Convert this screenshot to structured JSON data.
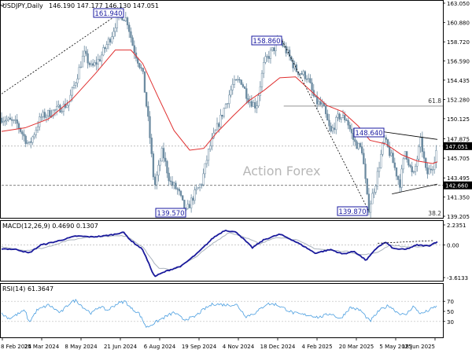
{
  "header": {
    "symbol": "USDJPY,Daily",
    "ohlc": "146.190 147.177 146.130 147.051"
  },
  "watermark": "Action Forex",
  "colors": {
    "candle": "#6b8aa0",
    "ma": "#e03030",
    "macd": "#1a1a9c",
    "signal": "#a9b2bc",
    "rsi": "#4a9ee0",
    "trend": "#000000",
    "priceTagBg": "#000000",
    "levelTagBg": "#000000"
  },
  "chart_data": [
    {
      "type": "line",
      "title": "USDJPY,Daily",
      "subtitle": "146.190 147.177 146.130 147.051",
      "x": [
        "8 Feb 2024",
        "25 Mar 2024",
        "8 May 2024",
        "21 Jun 2024",
        "6 Aug 2024",
        "19 Sep 2024",
        "4 Nov 2024",
        "18 Dec 2024",
        "4 Feb 2025",
        "20 Mar 2025",
        "5 May 2025",
        "18 Jun 2025"
      ],
      "ylim": [
        139.205,
        163.05
      ],
      "yticks": [
        "163.050",
        "160.880",
        "158.720",
        "156.590",
        "154.435",
        "152.280",
        "150.125",
        "147.875",
        "145.705",
        "143.495",
        "141.350",
        "139.205"
      ],
      "price_path": [
        [
          0,
          150.2
        ],
        [
          20,
          149.5
        ],
        [
          35,
          147.1
        ],
        [
          50,
          150.3
        ],
        [
          70,
          151.1
        ],
        [
          85,
          151.8
        ],
        [
          95,
          154.5
        ],
        [
          105,
          157.4
        ],
        [
          115,
          155.8
        ],
        [
          125,
          156.8
        ],
        [
          140,
          159.4
        ],
        [
          150,
          161.9
        ],
        [
          160,
          161.2
        ],
        [
          168,
          158.1
        ],
        [
          180,
          155.2
        ],
        [
          188,
          149.2
        ],
        [
          195,
          142.4
        ],
        [
          205,
          146.5
        ],
        [
          215,
          143.0
        ],
        [
          225,
          142.1
        ],
        [
          235,
          139.6
        ],
        [
          245,
          141.5
        ],
        [
          255,
          142.9
        ],
        [
          265,
          146.8
        ],
        [
          280,
          150.3
        ],
        [
          295,
          153.9
        ],
        [
          305,
          154.5
        ],
        [
          315,
          152.3
        ],
        [
          325,
          151.5
        ],
        [
          335,
          156.4
        ],
        [
          345,
          157.7
        ],
        [
          355,
          158.9
        ],
        [
          365,
          157.4
        ],
        [
          375,
          155.6
        ],
        [
          390,
          154.8
        ],
        [
          400,
          152.1
        ],
        [
          410,
          151.5
        ],
        [
          420,
          148.5
        ],
        [
          430,
          150.4
        ],
        [
          440,
          150.1
        ],
        [
          450,
          147.5
        ],
        [
          460,
          146.6
        ],
        [
          468,
          139.9
        ],
        [
          478,
          143.2
        ],
        [
          488,
          147.9
        ],
        [
          498,
          145.6
        ],
        [
          508,
          142.8
        ],
        [
          515,
          146.6
        ],
        [
          525,
          143.5
        ],
        [
          535,
          147.7
        ],
        [
          542,
          143.8
        ],
        [
          550,
          144.9
        ],
        [
          556,
          147.1
        ]
      ],
      "ma_path": [
        [
          0,
          148.7
        ],
        [
          30,
          149.1
        ],
        [
          60,
          150.1
        ],
        [
          90,
          152.3
        ],
        [
          120,
          155.2
        ],
        [
          145,
          157.8
        ],
        [
          165,
          157.8
        ],
        [
          180,
          156.3
        ],
        [
          200,
          152.5
        ],
        [
          220,
          148.8
        ],
        [
          240,
          146.6
        ],
        [
          258,
          146.8
        ],
        [
          275,
          148.6
        ],
        [
          295,
          150.4
        ],
        [
          315,
          152.1
        ],
        [
          335,
          153.3
        ],
        [
          355,
          154.7
        ],
        [
          375,
          154.8
        ],
        [
          395,
          153.2
        ],
        [
          415,
          151.6
        ],
        [
          435,
          150.9
        ],
        [
          455,
          149.3
        ],
        [
          470,
          147.7
        ],
        [
          490,
          147.3
        ],
        [
          510,
          146.1
        ],
        [
          530,
          145.4
        ],
        [
          550,
          145.1
        ],
        [
          556,
          145.3
        ]
      ],
      "annotations": [
        {
          "label": "161.940",
          "kind": "high"
        },
        {
          "label": "158.860",
          "kind": "high"
        },
        {
          "label": "148.640",
          "kind": "high"
        },
        {
          "label": "139.570",
          "kind": "low"
        },
        {
          "label": "139.870",
          "kind": "low"
        },
        {
          "label": "61.8",
          "kind": "fib"
        },
        {
          "label": "38.2",
          "kind": "fib"
        }
      ],
      "levels": [
        {
          "name": "current_price",
          "value": 147.051,
          "label": "147.051"
        },
        {
          "name": "support",
          "value": 142.66,
          "label": "142.660"
        },
        {
          "name": "fib_61_8",
          "value": 151.53
        }
      ],
      "trendlines": [
        {
          "name": "long-uptrend",
          "points": [
            [
              0,
              152.9
            ],
            [
              150,
              161.9
            ]
          ],
          "style": "dashed"
        },
        {
          "name": "downtrend",
          "points": [
            [
              358,
              158.86
            ],
            [
              468,
              139.87
            ]
          ],
          "style": "dashed"
        },
        {
          "name": "triangle-upper",
          "points": [
            [
              488,
              148.64
            ],
            [
              556,
              147.8
            ]
          ],
          "style": "solid"
        },
        {
          "name": "triangle-lower",
          "points": [
            [
              498,
              141.7
            ],
            [
              556,
              142.8
            ]
          ],
          "style": "solid"
        }
      ]
    },
    {
      "type": "line",
      "title": "MACD(12,26,9) 0.4690 0.1307",
      "ylim": [
        -3.6133,
        2.2351
      ],
      "yticks": [
        "2.2351",
        "0.00",
        "-3.6133"
      ],
      "macd": [
        [
          0,
          -0.4
        ],
        [
          20,
          -0.5
        ],
        [
          35,
          -0.9
        ],
        [
          50,
          0.0
        ],
        [
          70,
          0.4
        ],
        [
          95,
          1.0
        ],
        [
          115,
          0.9
        ],
        [
          130,
          1.0
        ],
        [
          145,
          1.2
        ],
        [
          155,
          1.45
        ],
        [
          165,
          0.5
        ],
        [
          180,
          -0.5
        ],
        [
          195,
          -3.5
        ],
        [
          210,
          -2.9
        ],
        [
          230,
          -2.3
        ],
        [
          250,
          -0.9
        ],
        [
          270,
          0.8
        ],
        [
          285,
          1.65
        ],
        [
          300,
          1.4
        ],
        [
          320,
          -0.3
        ],
        [
          335,
          0.6
        ],
        [
          355,
          1.2
        ],
        [
          370,
          0.6
        ],
        [
          385,
          -0.1
        ],
        [
          400,
          -0.9
        ],
        [
          420,
          -0.5
        ],
        [
          435,
          -1.0
        ],
        [
          450,
          -0.7
        ],
        [
          465,
          -1.7
        ],
        [
          480,
          -0.2
        ],
        [
          490,
          0.3
        ],
        [
          500,
          -0.4
        ],
        [
          515,
          -0.5
        ],
        [
          530,
          0.0
        ],
        [
          545,
          -0.1
        ],
        [
          556,
          0.4
        ]
      ],
      "signal": [
        [
          0,
          -0.2
        ],
        [
          30,
          -0.6
        ],
        [
          55,
          -0.3
        ],
        [
          80,
          0.4
        ],
        [
          110,
          0.9
        ],
        [
          140,
          1.0
        ],
        [
          160,
          1.0
        ],
        [
          180,
          -0.2
        ],
        [
          200,
          -2.6
        ],
        [
          220,
          -2.7
        ],
        [
          245,
          -1.5
        ],
        [
          270,
          0.2
        ],
        [
          290,
          1.4
        ],
        [
          310,
          0.9
        ],
        [
          330,
          0.1
        ],
        [
          350,
          0.9
        ],
        [
          375,
          0.6
        ],
        [
          400,
          -0.4
        ],
        [
          420,
          -0.6
        ],
        [
          440,
          -0.7
        ],
        [
          460,
          -1.1
        ],
        [
          478,
          -0.9
        ],
        [
          495,
          0.0
        ],
        [
          515,
          -0.2
        ],
        [
          535,
          -0.2
        ],
        [
          556,
          0.13
        ]
      ],
      "trendline": {
        "points": [
          [
            480,
            0.2
          ],
          [
            552,
            0.5
          ]
        ],
        "style": "dashed"
      }
    },
    {
      "type": "line",
      "title": "RSI(14) 61.3647",
      "ylim": [
        0,
        100
      ],
      "yticks": [
        "70",
        "50",
        "30"
      ],
      "reference_lines": [
        70,
        30
      ],
      "values": [
        [
          0,
          45
        ],
        [
          10,
          36
        ],
        [
          20,
          44
        ],
        [
          30,
          52
        ],
        [
          35,
          28
        ],
        [
          45,
          52
        ],
        [
          60,
          63
        ],
        [
          75,
          47
        ],
        [
          88,
          68
        ],
        [
          95,
          72
        ],
        [
          105,
          57
        ],
        [
          115,
          46
        ],
        [
          125,
          60
        ],
        [
          135,
          52
        ],
        [
          148,
          66
        ],
        [
          158,
          70
        ],
        [
          165,
          56
        ],
        [
          175,
          47
        ],
        [
          185,
          18
        ],
        [
          195,
          27
        ],
        [
          205,
          36
        ],
        [
          220,
          48
        ],
        [
          232,
          34
        ],
        [
          245,
          38
        ],
        [
          258,
          54
        ],
        [
          270,
          65
        ],
        [
          285,
          63
        ],
        [
          300,
          63
        ],
        [
          312,
          40
        ],
        [
          325,
          48
        ],
        [
          338,
          65
        ],
        [
          350,
          64
        ],
        [
          362,
          55
        ],
        [
          372,
          47
        ],
        [
          382,
          44
        ],
        [
          395,
          42
        ],
        [
          405,
          38
        ],
        [
          420,
          46
        ],
        [
          432,
          35
        ],
        [
          445,
          58
        ],
        [
          458,
          52
        ],
        [
          470,
          30
        ],
        [
          482,
          52
        ],
        [
          494,
          62
        ],
        [
          505,
          48
        ],
        [
          515,
          42
        ],
        [
          525,
          60
        ],
        [
          535,
          45
        ],
        [
          545,
          52
        ],
        [
          556,
          61.4
        ]
      ]
    }
  ]
}
